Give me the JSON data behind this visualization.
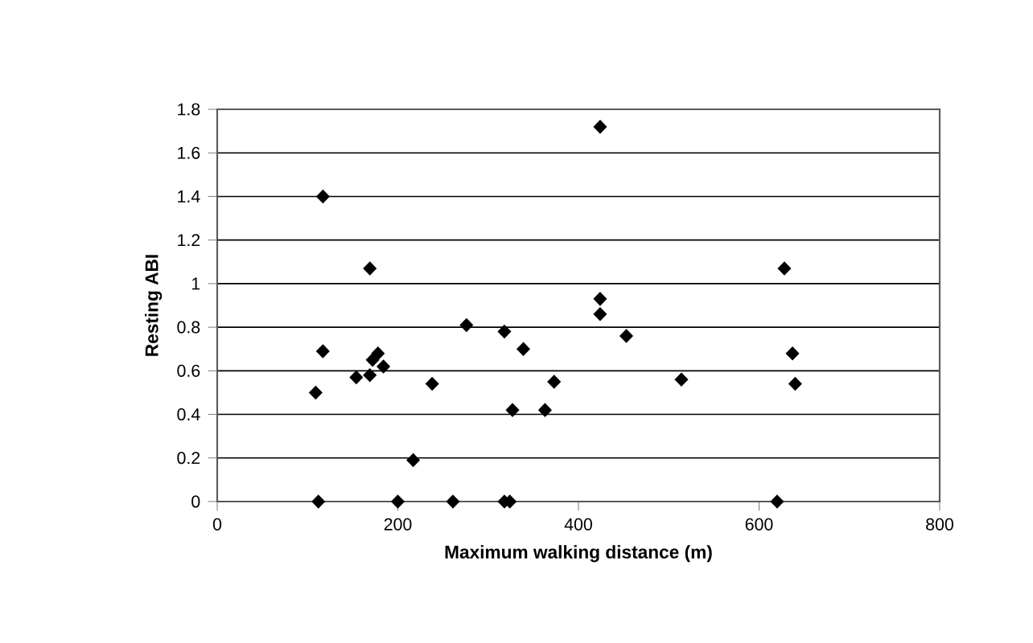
{
  "chart_data": {
    "type": "scatter",
    "xlabel": "Maximum walking distance (m)",
    "ylabel": "Resting ABI",
    "xlim": [
      0,
      800
    ],
    "xticks": [
      0,
      200,
      400,
      600,
      800
    ],
    "ylim": [
      0,
      1.8
    ],
    "yticks": [
      0,
      0.2,
      0.4,
      0.6,
      0.8,
      1,
      1.2,
      1.4,
      1.6,
      1.8
    ],
    "grid": "y",
    "marker": "diamond",
    "series": [
      {
        "color": "#000000",
        "x": [
          117,
          169,
          117,
          109,
          154,
          169,
          172,
          178,
          184,
          112,
          200,
          217,
          238,
          261,
          276,
          318,
          339,
          327,
          363,
          373,
          318,
          324,
          424,
          424,
          424,
          453,
          514,
          628,
          637,
          640,
          620
        ],
        "values": [
          1.4,
          1.07,
          0.69,
          0.5,
          0.57,
          0.58,
          0.65,
          0.68,
          0.62,
          0,
          0,
          0.19,
          0.54,
          0,
          0.81,
          0.78,
          0.7,
          0.42,
          0.42,
          0.55,
          0,
          0,
          1.72,
          0.93,
          0.86,
          0.76,
          0.56,
          1.07,
          0.68,
          0.54,
          0
        ]
      }
    ]
  }
}
